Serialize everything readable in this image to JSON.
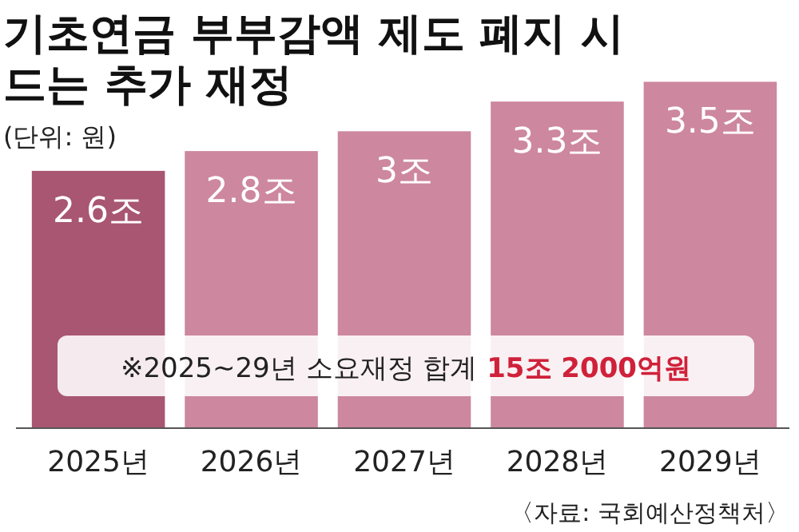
{
  "chart_data": {
    "type": "bar",
    "title": "기초연금 부부감액 제도 폐지 시\n드는 추가 재정",
    "subtitle": "(단위: 원)",
    "categories": [
      "2025년",
      "2026년",
      "2027년",
      "2028년",
      "2029년"
    ],
    "values": [
      2.6,
      2.8,
      3,
      3.3,
      3.5
    ],
    "value_labels": [
      "2.6조",
      "2.8조",
      "3조",
      "3.3조",
      "3.5조"
    ],
    "colors": [
      "#a85672",
      "#cd879f",
      "#cd879f",
      "#cd879f",
      "#cd879f"
    ],
    "annotations": [
      "※2025~29년 소요재정 합계",
      "15조 2000억원",
      "〈자료: 국회예산정책처〉"
    ]
  }
}
